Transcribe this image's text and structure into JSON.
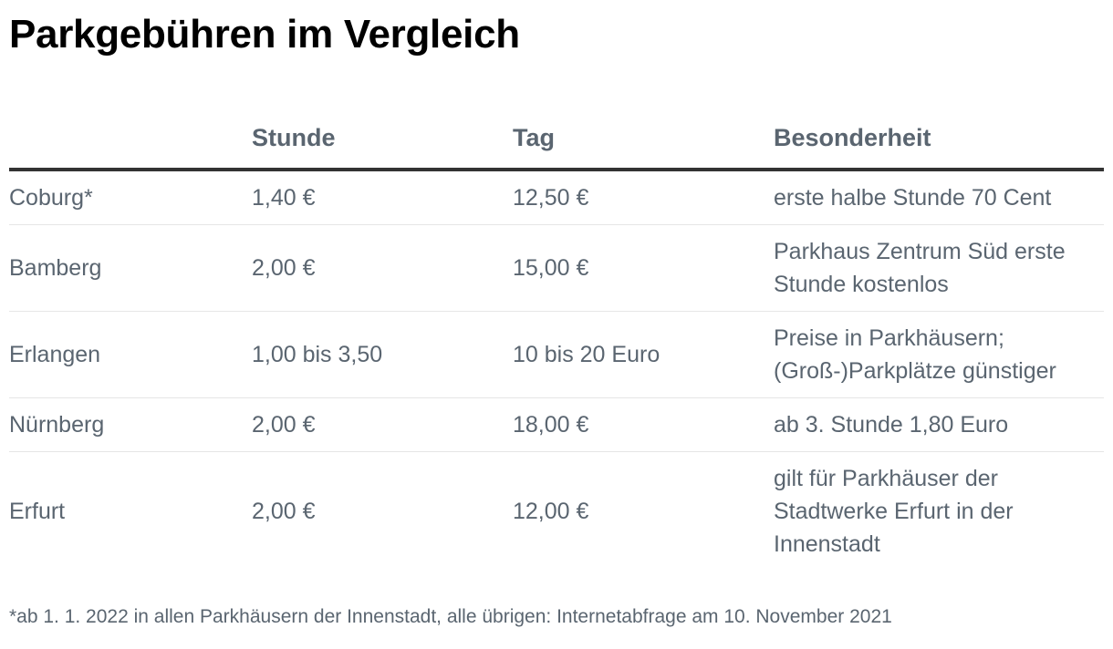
{
  "title": "Parkgebühren im Vergleich",
  "table": {
    "columns": [
      "",
      "Stunde",
      "Tag",
      "Besonderheit"
    ],
    "rows": [
      [
        "Coburg*",
        "1,40 €",
        "12,50 €",
        "erste halbe Stunde 70 Cent"
      ],
      [
        "Bamberg",
        "2,00 €",
        "15,00 €",
        "Parkhaus Zentrum Süd erste Stunde kostenlos"
      ],
      [
        "Erlangen",
        "1,00 bis 3,50",
        "10 bis 20 Euro",
        "Preise in Parkhäusern; (Groß-)Parkplätze günstiger"
      ],
      [
        "Nürnberg",
        "2,00 €",
        "18,00 €",
        "ab 3. Stunde 1,80 Euro"
      ],
      [
        "Erfurt",
        "2,00 €",
        "12,00 €",
        "gilt für Parkhäuser der Stadtwerke Erfurt in der Innenstadt"
      ]
    ]
  },
  "footnote": "*ab 1. 1. 2022 in allen Parkhäusern der Innenstadt, alle übrigen: Internetabfrage am 10. November 2021"
}
